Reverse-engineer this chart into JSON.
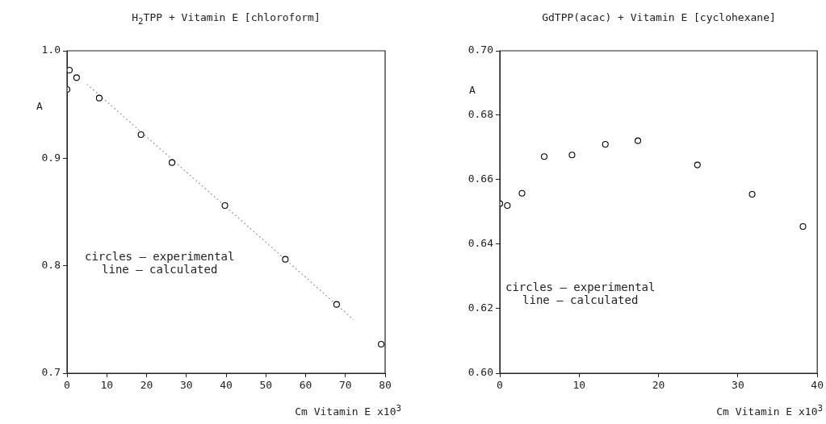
{
  "chart_data": [
    {
      "type": "scatter",
      "title": "H$_{2}$TPP + Vitamin E [chloroform]",
      "xlabel": "Cm Vitamin E x10$^{3}$",
      "ylabel": "A",
      "marker": "circle",
      "grid": false,
      "legend": false,
      "xlim": [
        0,
        80
      ],
      "xticks": [
        0,
        10,
        20,
        30,
        40,
        50,
        60,
        70,
        80
      ],
      "ylim": [
        0.7,
        1.0
      ],
      "yticks": [
        0.7,
        0.8,
        0.9,
        {
          "value": 1.0,
          "label": "1.0"
        }
      ],
      "annotations": [
        "circles – experimental",
        "line – calculated"
      ],
      "series": [
        {
          "type": "scatter",
          "color": "#000000",
          "x": [
            0,
            0.6,
            2.4,
            8.1,
            18.6,
            26.4,
            39.7,
            54.9,
            67.8,
            79.0
          ],
          "values": [
            0.964,
            0.982,
            0.975,
            0.956,
            0.922,
            0.896,
            0.856,
            0.806,
            0.764,
            0.727
          ]
        },
        {
          "type": "line",
          "color": "#9a9a9a",
          "line_style": "dotted",
          "marker": "none",
          "x": [
            5,
            72
          ],
          "values": [
            0.969,
            0.75
          ]
        }
      ]
    },
    {
      "type": "scatter",
      "title": "GdTPP(acac) + Vitamin E [cyclohexane]",
      "xlabel": "Cm Vitamin E x10$^{3}$",
      "ylabel": "A",
      "marker": "circle",
      "grid": false,
      "legend": false,
      "xlim": [
        0,
        40
      ],
      "xticks": [
        0,
        10,
        20,
        30,
        40
      ],
      "ylim": [
        0.6,
        0.7
      ],
      "yticks": [
        {
          "value": 0.6,
          "label": "0.60"
        },
        0.62,
        0.64,
        0.66,
        0.68,
        {
          "value": 0.7,
          "label": "0.70"
        }
      ],
      "annotations": [
        "circles – experimental",
        "line – calculated"
      ],
      "series": [
        {
          "type": "scatter",
          "color": "#000000",
          "x": [
            0,
            0.95,
            2.8,
            5.6,
            9.1,
            13.3,
            17.4,
            24.9,
            31.8,
            38.2
          ],
          "values": [
            0.6526,
            0.652,
            0.6558,
            0.6672,
            0.6677,
            0.671,
            0.6721,
            0.6646,
            0.6555,
            0.6455
          ]
        }
      ]
    }
  ]
}
